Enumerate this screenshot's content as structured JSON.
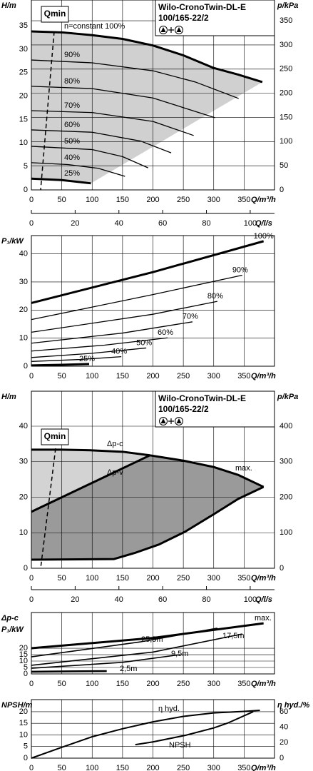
{
  "chart_data": [
    {
      "type": "line",
      "title": [
        "Wilo-CronoTwin-DL-E",
        "100/165-22/2"
      ],
      "annotation": "Qmin",
      "y_label": "H/m",
      "y2_label": "p/kPa",
      "x_label": "Q/m³/h",
      "x2_label": "Q/l/s",
      "xlim": [
        0,
        400
      ],
      "xticks": [
        0,
        50,
        100,
        150,
        200,
        250,
        300,
        350
      ],
      "x2lim": [
        0,
        111.1
      ],
      "x2ticks": [
        0,
        20,
        40,
        60,
        80,
        100
      ],
      "ylim": [
        0,
        40.5
      ],
      "yticks": [
        0,
        5,
        10,
        15,
        20,
        25,
        30,
        35
      ],
      "y2lim": [
        0,
        393
      ],
      "y2ticks": [
        0,
        50,
        100,
        150,
        200,
        250,
        300,
        350
      ],
      "grid": "y2",
      "series": [
        {
          "name": "n=constant 100%",
          "color": "#000000",
          "x": [
            0,
            50,
            100,
            150,
            200,
            250,
            300,
            340,
            380
          ],
          "values": [
            33.8,
            33.6,
            33,
            32.2,
            30.8,
            28.7,
            26,
            24.6,
            23
          ]
        },
        {
          "name": "90%",
          "color": "#000000",
          "x": [
            0,
            100,
            200,
            270,
            341
          ],
          "values": [
            27.7,
            27.1,
            25.4,
            23,
            19.5
          ]
        },
        {
          "name": "80%",
          "color": "#000000",
          "x": [
            0,
            100,
            200,
            302
          ],
          "values": [
            22.1,
            21.6,
            19.6,
            15.4
          ]
        },
        {
          "name": "70%",
          "color": "#000000",
          "x": [
            0,
            100,
            200,
            267
          ],
          "values": [
            16.9,
            16.5,
            14.6,
            11.6
          ]
        },
        {
          "name": "60%",
          "color": "#000000",
          "x": [
            0,
            100,
            180,
            230
          ],
          "values": [
            12.8,
            12.3,
            10.4,
            7.9
          ]
        },
        {
          "name": "50%",
          "color": "#000000",
          "x": [
            0,
            100,
            150,
            192
          ],
          "values": [
            9.3,
            8.6,
            7.1,
            4.7
          ]
        },
        {
          "name": "40%",
          "color": "#000000",
          "x": [
            0,
            60,
            110,
            154
          ],
          "values": [
            5.8,
            5.4,
            4.6,
            2.9
          ]
        },
        {
          "name": "25%",
          "color": "#000000",
          "x": [
            0,
            50,
            98
          ],
          "values": [
            2.4,
            2.1,
            1.4
          ]
        }
      ]
    },
    {
      "type": "line",
      "y_label": "P₁/kW",
      "x_label": "Q/m³/h",
      "xlim": [
        0,
        400
      ],
      "xticks": [
        0,
        50,
        100,
        150,
        200,
        250,
        300,
        350
      ],
      "ylim": [
        0,
        46.5
      ],
      "yticks": [
        0,
        10,
        20,
        30,
        40
      ],
      "grid": "y",
      "series": [
        {
          "name": "100%",
          "color": "#000000",
          "x": [
            0,
            200,
            382
          ],
          "values": [
            22.5,
            33.5,
            44.5
          ]
        },
        {
          "name": "90%",
          "color": "#000000",
          "x": [
            0,
            200,
            347
          ],
          "values": [
            16.6,
            25.5,
            32.4
          ]
        },
        {
          "name": "80%",
          "color": "#000000",
          "x": [
            0,
            200,
            306
          ],
          "values": [
            12.1,
            18.5,
            23.1
          ]
        },
        {
          "name": "70%",
          "color": "#000000",
          "x": [
            0,
            150,
            265
          ],
          "values": [
            8.2,
            11.8,
            15.8
          ]
        },
        {
          "name": "60%",
          "color": "#000000",
          "x": [
            0,
            120,
            224
          ],
          "values": [
            5.4,
            7.5,
            10.1
          ]
        },
        {
          "name": "50%",
          "color": "#000000",
          "x": [
            0,
            100,
            189
          ],
          "values": [
            3.1,
            4.6,
            6.5
          ]
        },
        {
          "name": "40%",
          "color": "#000000",
          "x": [
            0,
            80,
            148
          ],
          "values": [
            1.7,
            2.4,
            3.4
          ]
        },
        {
          "name": "25%",
          "color": "#000000",
          "x": [
            0,
            50,
            95
          ],
          "values": [
            0.3,
            0.5,
            0.8
          ]
        }
      ]
    },
    {
      "type": "line",
      "title": [
        "Wilo-CronoTwin-DL-E",
        "100/165-22/2"
      ],
      "annotation": "Qmin",
      "y_label": "H/m",
      "y2_label": "p/kPa",
      "x_label": "Q/m³/h",
      "x2_label": "Q/l/s",
      "xlim": [
        0,
        400
      ],
      "xticks": [
        0,
        50,
        100,
        150,
        200,
        250,
        300,
        350
      ],
      "x2lim": [
        0,
        111.1
      ],
      "x2ticks": [
        0,
        20,
        40,
        60,
        80,
        100
      ],
      "ylim": [
        0,
        49.85
      ],
      "yticks": [
        0,
        10,
        20,
        30,
        40
      ],
      "y2lim": [
        0,
        498.5
      ],
      "y2ticks": [
        0,
        100,
        200,
        300,
        400
      ],
      "grid": "y2",
      "series": [
        {
          "name": "Δp-c",
          "color": "#000000",
          "x": [
            0,
            50,
            100,
            150,
            195
          ],
          "values": [
            33.4,
            33.4,
            33.2,
            32.8,
            31.8
          ]
        },
        {
          "name": "Δp-v",
          "color": "#000000",
          "x": [
            0,
            195
          ],
          "values": [
            15.9,
            31.8
          ]
        },
        {
          "name": "max.",
          "color": "#000000",
          "x": [
            195,
            250,
            300,
            340,
            382
          ],
          "values": [
            31.8,
            30.3,
            28.5,
            26.3,
            22.9
          ]
        },
        {
          "color": "#000000",
          "x": [
            0,
            136,
            170,
            210,
            253,
            300,
            340,
            382
          ],
          "values": [
            2.4,
            2.6,
            4.3,
            6.7,
            10.3,
            15.2,
            19.5,
            22.9
          ]
        }
      ]
    },
    {
      "type": "line",
      "y_label": [
        "Δp-c",
        "P₁/kW"
      ],
      "x_label": "Q/m³/h",
      "xlim": [
        0,
        400
      ],
      "xticks": [
        0,
        50,
        100,
        150,
        200,
        250,
        300,
        350
      ],
      "ylim": [
        0,
        47.8
      ],
      "yticks": [
        0,
        5,
        10,
        15,
        20
      ],
      "grid": "y",
      "series": [
        {
          "name": "max.",
          "color": "#000000",
          "x": [
            0,
            200,
            382
          ],
          "values": [
            20,
            28,
            39.4
          ]
        },
        {
          "name": "25,5m",
          "color": "#000000",
          "x": [
            0,
            180,
            306
          ],
          "values": [
            13.3,
            25,
            35.6
          ]
        },
        {
          "name": "17,5m",
          "color": "#000000",
          "x": [
            0,
            200,
            347
          ],
          "values": [
            6.7,
            17,
            31.1
          ]
        },
        {
          "name": "9,5m",
          "color": "#000000",
          "x": [
            0,
            150,
            245
          ],
          "values": [
            4.4,
            9,
            15
          ]
        },
        {
          "name": "2,5m",
          "color": "#000000",
          "x": [
            0,
            60,
            124
          ],
          "values": [
            1.7,
            2,
            2.2
          ]
        }
      ]
    },
    {
      "type": "line",
      "y_label": "NPSH/m",
      "y2_label": "η hyd./%",
      "x_label": "Q/m³/h",
      "xlim": [
        0,
        400
      ],
      "xticks": [
        0,
        50,
        100,
        150,
        200,
        250,
        300,
        350
      ],
      "ylim": [
        0,
        25.2
      ],
      "yticks": [
        0,
        5,
        10,
        15,
        20
      ],
      "y2lim": [
        0,
        75.7
      ],
      "y2ticks": [
        0,
        20,
        40,
        60
      ],
      "grid": "y",
      "series": [
        {
          "name": "η hyd.",
          "color": "#000000",
          "axis": "y2",
          "x": [
            0,
            50,
            100,
            150,
            200,
            250,
            300,
            350,
            376
          ],
          "values": [
            0,
            14,
            27.7,
            38,
            47,
            54,
            58.5,
            60.5,
            61.8
          ]
        },
        {
          "name": "NPSH",
          "color": "#000000",
          "x": [
            171,
            200,
            253,
            300,
            323,
            365
          ],
          "values": [
            5.8,
            7,
            9.8,
            13,
            15.1,
            20
          ]
        }
      ]
    }
  ]
}
